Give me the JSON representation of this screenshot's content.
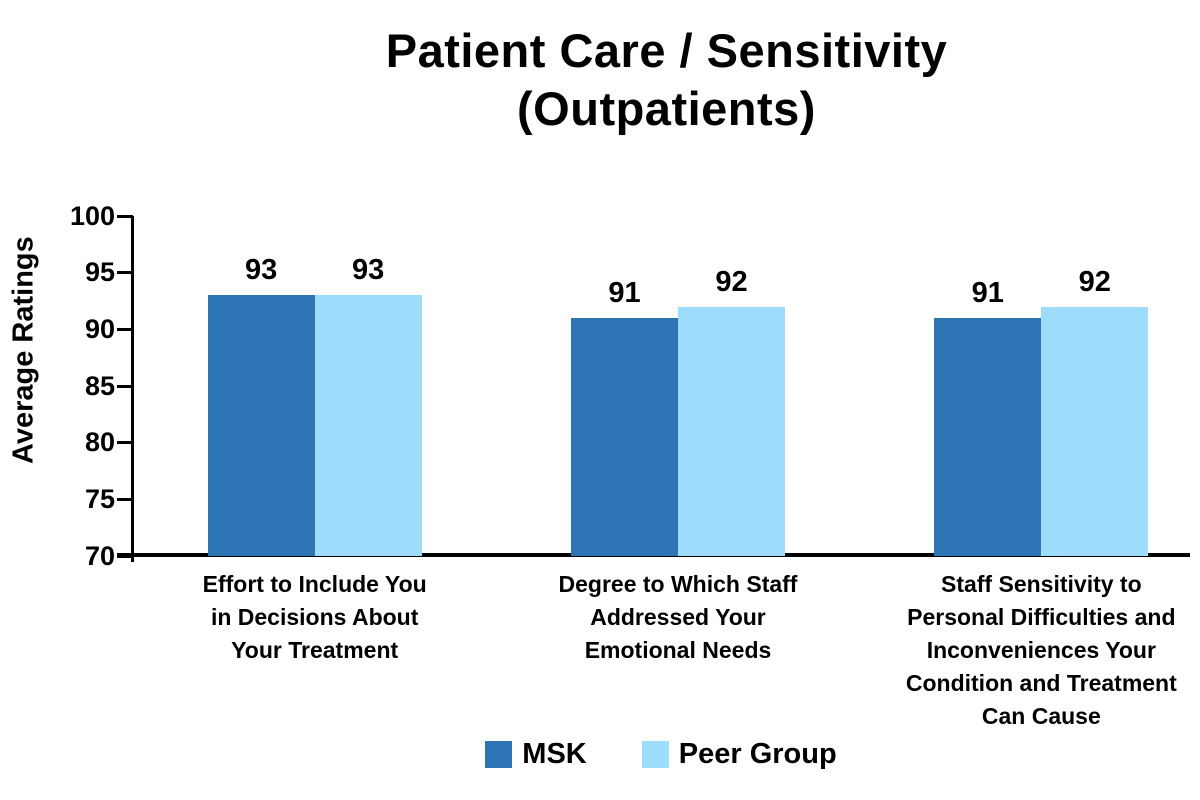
{
  "title": {
    "line1": "Patient Care / Sensitivity",
    "line2": "(Outpatients)"
  },
  "colors": {
    "background": "#FFFFFF",
    "text": "#000000",
    "axis": "#000000",
    "msk_bar": "#2E75B5",
    "peer_group_bar": "#9EDCFC"
  },
  "chart_data": {
    "type": "bar",
    "title": "Patient Care / Sensitivity (Outpatients)",
    "xlabel": "",
    "ylabel": "Average Ratings",
    "ylim": [
      70,
      100
    ],
    "yticks": [
      70,
      75,
      80,
      85,
      90,
      95,
      100
    ],
    "grid": false,
    "legend_position": "bottom-center",
    "bar_value_labels_shown": true,
    "categories": [
      "Effort to Include You in Decisions About Your Treatment",
      "Degree to Which Staff Addressed Your Emotional Needs",
      "Staff Sensitivity to Personal Difficulties and Inconveniences Your Condition and Treatment Can Cause"
    ],
    "category_lines": [
      [
        "Effort to Include You",
        "in Decisions About",
        "Your Treatment"
      ],
      [
        "Degree to Which Staff",
        "Addressed Your",
        "Emotional Needs"
      ],
      [
        "Staff Sensitivity to",
        "Personal Difficulties and",
        "Inconveniences Your",
        "Condition and Treatment",
        "Can Cause"
      ]
    ],
    "series": [
      {
        "name": "MSK",
        "color": "#2E75B5",
        "values": [
          93,
          91,
          91
        ]
      },
      {
        "name": "Peer Group",
        "color": "#9EDCFC",
        "values": [
          93,
          92,
          92
        ]
      }
    ]
  }
}
